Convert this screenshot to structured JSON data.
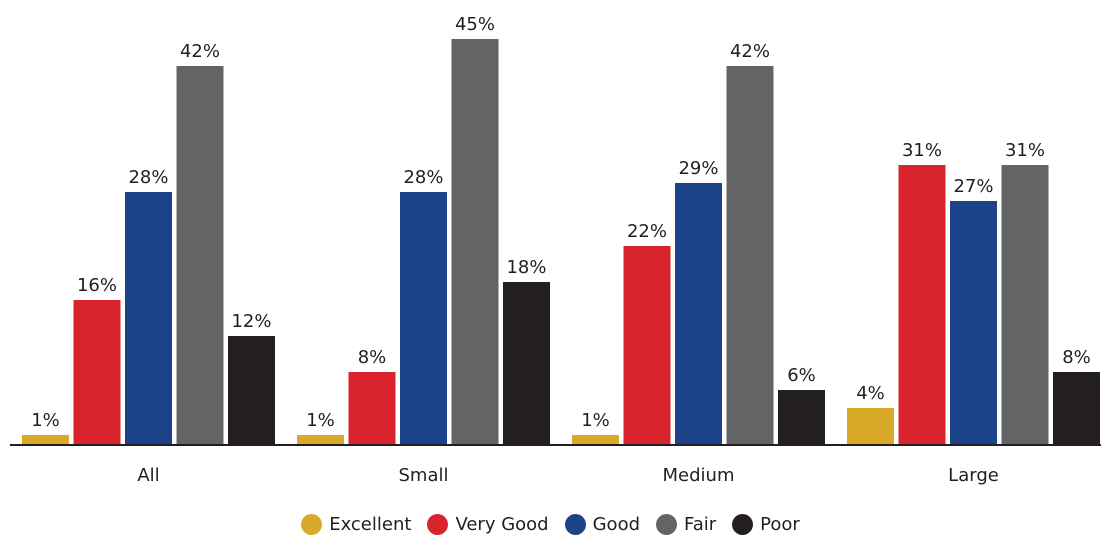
{
  "chart_data": {
    "type": "bar",
    "title": "",
    "xlabel": "",
    "ylabel": "",
    "ylim": [
      0,
      45
    ],
    "grid": false,
    "legend_position": "bottom-center",
    "categories": [
      "All",
      "Small",
      "Medium",
      "Large"
    ],
    "series": [
      {
        "name": "Excellent",
        "color": "#d9a928",
        "values": [
          1,
          1,
          1,
          4
        ],
        "labels": [
          "1%",
          "1%",
          "1%",
          "4%"
        ]
      },
      {
        "name": "Very Good",
        "color": "#d9232d",
        "values": [
          16,
          8,
          22,
          31
        ],
        "labels": [
          "16%",
          "8%",
          "22%",
          "31%"
        ]
      },
      {
        "name": "Good",
        "color": "#1c4288",
        "values": [
          28,
          28,
          29,
          27
        ],
        "labels": [
          "28%",
          "28%",
          "29%",
          "27%"
        ]
      },
      {
        "name": "Fair",
        "color": "#636466",
        "values": [
          42,
          45,
          42,
          31
        ],
        "labels": [
          "42%",
          "45%",
          "42%",
          "31%"
        ]
      },
      {
        "name": "Poor",
        "color": "#231f20",
        "values": [
          12,
          18,
          6,
          8
        ],
        "labels": [
          "12%",
          "18%",
          "6%",
          "8%"
        ]
      }
    ]
  }
}
